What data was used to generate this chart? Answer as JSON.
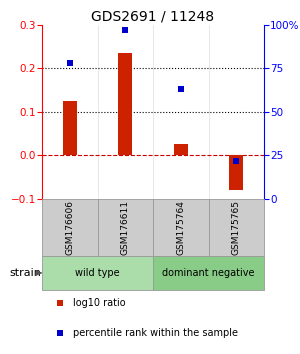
{
  "title": "GDS2691 / 11248",
  "samples": [
    "GSM176606",
    "GSM176611",
    "GSM175764",
    "GSM175765"
  ],
  "log10_ratio": [
    0.125,
    0.235,
    0.025,
    -0.08
  ],
  "percentile_rank": [
    78,
    97,
    63,
    22
  ],
  "groups": [
    {
      "label": "wild type",
      "samples": [
        0,
        1
      ],
      "color": "#aaddaa"
    },
    {
      "label": "dominant negative",
      "samples": [
        2,
        3
      ],
      "color": "#88cc88"
    }
  ],
  "bar_color": "#cc2200",
  "dot_color": "#0000cc",
  "ylim_left": [
    -0.1,
    0.3
  ],
  "ylim_right": [
    0,
    100
  ],
  "yticks_left": [
    -0.1,
    0.0,
    0.1,
    0.2,
    0.3
  ],
  "yticks_right": [
    0,
    25,
    50,
    75,
    100
  ],
  "ytick_labels_right": [
    "0",
    "25",
    "50",
    "75",
    "100%"
  ],
  "hlines": [
    0.1,
    0.2
  ],
  "zero_line_color": "#cc0000",
  "hline_color": "#000000",
  "strain_label": "strain",
  "legend_items": [
    {
      "color": "#cc2200",
      "label": "log10 ratio"
    },
    {
      "color": "#0000cc",
      "label": "percentile rank within the sample"
    }
  ],
  "bar_width": 0.25,
  "sample_box_color": "#cccccc",
  "sample_box_edge": "#999999"
}
